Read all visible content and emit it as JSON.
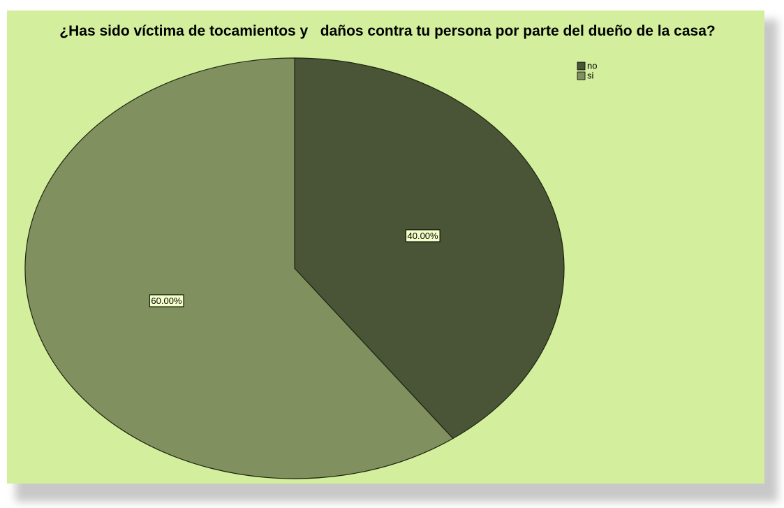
{
  "chart_data": {
    "type": "pie",
    "title": "¿Has sido víctima de tocamientos y   daños contra tu persona por parte del dueño de la casa?",
    "categories": [
      "no",
      "si"
    ],
    "values": [
      40,
      60
    ],
    "value_labels": [
      "40.00%",
      "60.00%"
    ],
    "colors": [
      "#4a5437",
      "#80905e"
    ],
    "legend": "top-right"
  }
}
